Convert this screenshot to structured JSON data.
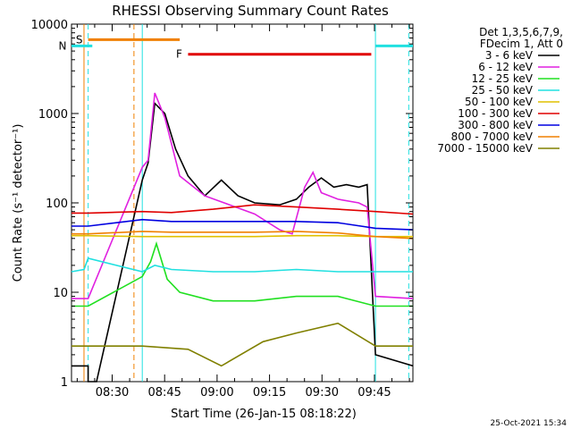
{
  "chart_data": {
    "type": "line",
    "title": "RHESSI Observing Summary Count Rates",
    "xlabel": "Start Time (26-Jan-15 08:18:22)",
    "ylabel": "Count Rate (s⁻¹ detector⁻¹)",
    "x_range_minutes": [
      "08:18:22",
      "09:56:00"
    ],
    "ylim": [
      1,
      10000
    ],
    "y_scale": "log",
    "y_ticks": [
      {
        "value": 1,
        "label": "1"
      },
      {
        "value": 10,
        "label": "10"
      },
      {
        "value": 100,
        "label": "100"
      },
      {
        "value": 1000,
        "label": "1000"
      },
      {
        "value": 10000,
        "label": "10000"
      }
    ],
    "x_ticks": [
      {
        "time": "08:30",
        "label": "08:30"
      },
      {
        "time": "08:45",
        "label": "08:45"
      },
      {
        "time": "09:00",
        "label": "09:00"
      },
      {
        "time": "09:15",
        "label": "09:15"
      },
      {
        "time": "09:30",
        "label": "09:30"
      },
      {
        "time": "09:45",
        "label": "09:45"
      }
    ],
    "legend_header": [
      "Det 1,3,5,6,7,9,",
      "FDecim 1, Att 0"
    ],
    "legend_placement": "right",
    "timestamp": "25-Oct-2021 15:34",
    "series": [
      {
        "name": "3 - 6 keV",
        "color": "#000000",
        "points": [
          [
            8.3,
            1.5
          ],
          [
            8.5,
            1.5
          ],
          [
            8.5,
            1.0
          ],
          [
            8.6,
            1.0
          ],
          [
            9.15,
            180
          ],
          [
            9.22,
            280
          ],
          [
            9.3,
            1300
          ],
          [
            9.42,
            1000
          ],
          [
            9.55,
            400
          ],
          [
            9.7,
            200
          ],
          [
            9.9,
            120
          ],
          [
            10.1,
            180
          ],
          [
            10.3,
            120
          ],
          [
            10.5,
            100
          ],
          [
            10.8,
            95
          ],
          [
            11.0,
            110
          ],
          [
            11.15,
            150
          ],
          [
            11.3,
            190
          ],
          [
            11.45,
            150
          ],
          [
            11.6,
            160
          ],
          [
            11.75,
            150
          ],
          [
            11.85,
            160
          ],
          [
            11.95,
            2
          ],
          [
            12.4,
            1.5
          ]
        ]
      },
      {
        "name": "6 - 12 keV",
        "color": "#e020e0",
        "points": [
          [
            8.3,
            8.5
          ],
          [
            8.5,
            8.5
          ],
          [
            9.15,
            250
          ],
          [
            9.22,
            300
          ],
          [
            9.3,
            1700
          ],
          [
            9.42,
            900
          ],
          [
            9.6,
            200
          ],
          [
            9.9,
            120
          ],
          [
            10.2,
            95
          ],
          [
            10.5,
            75
          ],
          [
            10.8,
            50
          ],
          [
            10.95,
            45
          ],
          [
            11.1,
            150
          ],
          [
            11.2,
            220
          ],
          [
            11.3,
            130
          ],
          [
            11.5,
            110
          ],
          [
            11.75,
            100
          ],
          [
            11.85,
            90
          ],
          [
            11.95,
            9
          ],
          [
            12.4,
            8.5
          ]
        ]
      },
      {
        "name": "12 - 25 keV",
        "color": "#20e020",
        "points": [
          [
            8.3,
            7
          ],
          [
            8.5,
            7
          ],
          [
            9.15,
            15
          ],
          [
            9.25,
            22
          ],
          [
            9.32,
            35
          ],
          [
            9.45,
            14
          ],
          [
            9.6,
            10
          ],
          [
            10.0,
            8
          ],
          [
            10.5,
            8
          ],
          [
            11.0,
            9
          ],
          [
            11.5,
            9
          ],
          [
            11.95,
            7
          ],
          [
            12.4,
            7
          ]
        ]
      },
      {
        "name": "25 - 50 keV",
        "color": "#20e0e0",
        "points": [
          [
            8.3,
            17
          ],
          [
            8.45,
            18
          ],
          [
            8.5,
            24
          ],
          [
            9.15,
            17
          ],
          [
            9.3,
            20
          ],
          [
            9.5,
            18
          ],
          [
            10.0,
            17
          ],
          [
            10.5,
            17
          ],
          [
            11.0,
            18
          ],
          [
            11.5,
            17
          ],
          [
            11.95,
            17
          ],
          [
            12.4,
            17
          ]
        ]
      },
      {
        "name": "50 - 100 keV",
        "color": "#e0c000",
        "points": [
          [
            8.3,
            43
          ],
          [
            8.5,
            43
          ],
          [
            9.15,
            42
          ],
          [
            9.5,
            42
          ],
          [
            10.0,
            42
          ],
          [
            10.5,
            42
          ],
          [
            11.0,
            43
          ],
          [
            11.5,
            43
          ],
          [
            11.95,
            42
          ],
          [
            12.4,
            42
          ]
        ]
      },
      {
        "name": "100 - 300 keV",
        "color": "#e00000",
        "points": [
          [
            8.3,
            77
          ],
          [
            8.5,
            77
          ],
          [
            9.15,
            80
          ],
          [
            9.5,
            78
          ],
          [
            10.0,
            85
          ],
          [
            10.5,
            95
          ],
          [
            11.0,
            90
          ],
          [
            11.5,
            85
          ],
          [
            11.95,
            80
          ],
          [
            12.4,
            75
          ]
        ]
      },
      {
        "name": "300 - 800 keV",
        "color": "#0000e0",
        "points": [
          [
            8.3,
            55
          ],
          [
            8.5,
            55
          ],
          [
            9.15,
            65
          ],
          [
            9.5,
            62
          ],
          [
            10.0,
            62
          ],
          [
            10.5,
            62
          ],
          [
            11.0,
            62
          ],
          [
            11.5,
            60
          ],
          [
            11.95,
            52
          ],
          [
            12.4,
            50
          ]
        ]
      },
      {
        "name": "800 - 7000 keV",
        "color": "#f08000",
        "points": [
          [
            8.3,
            45
          ],
          [
            8.5,
            45
          ],
          [
            9.15,
            48
          ],
          [
            9.5,
            47
          ],
          [
            10.0,
            47
          ],
          [
            10.5,
            47
          ],
          [
            11.0,
            48
          ],
          [
            11.5,
            46
          ],
          [
            11.95,
            42
          ],
          [
            12.4,
            40
          ]
        ]
      },
      {
        "name": "7000 - 15000 keV",
        "color": "#808000",
        "points": [
          [
            8.3,
            2.5
          ],
          [
            8.5,
            2.5
          ],
          [
            9.15,
            2.5
          ],
          [
            9.7,
            2.3
          ],
          [
            10.1,
            1.5
          ],
          [
            10.6,
            2.8
          ],
          [
            11.0,
            3.5
          ],
          [
            11.5,
            4.5
          ],
          [
            11.95,
            2.5
          ],
          [
            12.4,
            2.5
          ]
        ]
      }
    ],
    "annotations": [
      {
        "label": "S",
        "color": "#f08000",
        "x_start": 8.5,
        "x_end": 9.6,
        "y": 6700
      },
      {
        "label": "N",
        "color": "#20e0e0",
        "x_start": 8.3,
        "x_end": 8.55,
        "y": 5700
      },
      {
        "label": "",
        "color": "#20e0e0",
        "x_start": 11.95,
        "x_end": 12.4,
        "y": 5700
      },
      {
        "label": "F",
        "color": "#e00000",
        "x_start": 9.7,
        "x_end": 11.9,
        "y": 4600
      }
    ],
    "vertical_lines": [
      {
        "x": 8.45,
        "color": "#f08000",
        "style": "solid"
      },
      {
        "x": 8.5,
        "color": "#20e0e0",
        "style": "dashed"
      },
      {
        "x": 9.05,
        "color": "#f08000",
        "style": "dashed"
      },
      {
        "x": 9.15,
        "color": "#20e0e0",
        "style": "solid"
      },
      {
        "x": 11.95,
        "color": "#20e0e0",
        "style": "solid"
      },
      {
        "x": 12.35,
        "color": "#20e0e0",
        "style": "dashed"
      }
    ]
  }
}
